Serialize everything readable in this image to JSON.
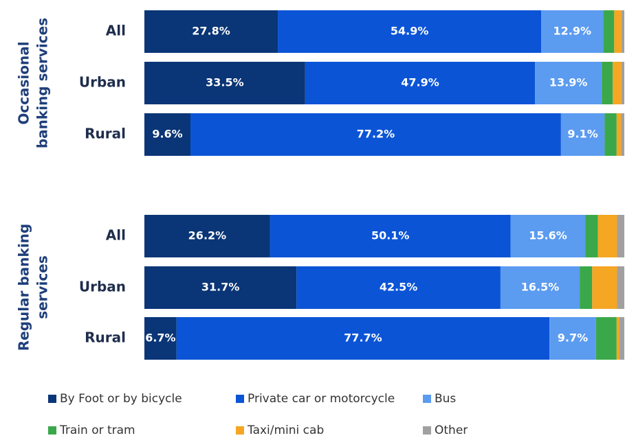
{
  "chart_data": {
    "type": "stacked-bar-horizontal",
    "categories": [
      "All",
      "Urban",
      "Rural",
      "All",
      "Urban",
      "Rural"
    ],
    "groups": [
      {
        "label": [
          "Occasional",
          "banking services"
        ],
        "rows": [
          0,
          1,
          2
        ]
      },
      {
        "label": [
          "Regular banking",
          "services"
        ],
        "rows": [
          3,
          4,
          5
        ]
      }
    ],
    "xlim": [
      0,
      100
    ],
    "legend": "bottom",
    "series": [
      {
        "name": "By Foot or by bicycle",
        "color": "#0a3576",
        "values": [
          27.8,
          33.5,
          9.6,
          26.2,
          31.7,
          6.7
        ],
        "value_labels": [
          "27.8%",
          "33.5%",
          "9.6%",
          "26.2%",
          "31.7%",
          "6.7%"
        ]
      },
      {
        "name": "Private car or motorcycle",
        "color": "#0b54d6",
        "values": [
          54.9,
          47.9,
          77.2,
          50.1,
          42.5,
          77.7
        ],
        "value_labels": [
          "54.9%",
          "47.9%",
          "77.2%",
          "50.1%",
          "42.5%",
          "77.7%"
        ]
      },
      {
        "name": "Bus",
        "color": "#5b9bf0",
        "values": [
          12.9,
          13.9,
          9.1,
          15.6,
          16.5,
          9.7
        ],
        "value_labels": [
          "12.9%",
          "13.9%",
          "9.1%",
          "15.6%",
          "16.5%",
          "9.7%"
        ]
      },
      {
        "name": "Train or tram",
        "color": "#3aa84a",
        "values": [
          2.3,
          2.3,
          2.5,
          2.6,
          2.6,
          4.3
        ]
      },
      {
        "name": "Taxi/mini cab",
        "color": "#f5a623",
        "values": [
          1.5,
          1.8,
          0.9,
          4.0,
          5.2,
          0.6
        ]
      },
      {
        "name": "Other",
        "color": "#a0a0a0",
        "values": [
          0.6,
          0.6,
          0.7,
          1.5,
          1.5,
          1.0
        ]
      }
    ]
  }
}
